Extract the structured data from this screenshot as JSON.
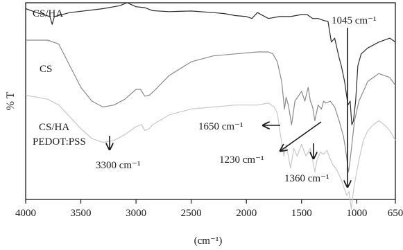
{
  "chart_data": {
    "type": "line",
    "xlabel": "(cm⁻¹)",
    "ylabel": "% T",
    "xlim": [
      4000,
      650
    ],
    "x_reversed": true,
    "x_ticks": [
      "4000",
      "3500",
      "3000",
      "2500",
      "2000",
      "1500",
      "1000",
      "650"
    ],
    "x_tick_values": [
      4000,
      3500,
      3000,
      2500,
      2000,
      1500,
      1000,
      650
    ],
    "ylim": [
      0,
      100
    ],
    "grid": false,
    "series": [
      {
        "name": "CS/HA",
        "color": "#2b2b2b",
        "points": [
          [
            4000,
            97
          ],
          [
            3900,
            95
          ],
          [
            3780,
            93
          ],
          [
            3760,
            89
          ],
          [
            3740,
            93
          ],
          [
            3600,
            95
          ],
          [
            3450,
            96
          ],
          [
            3300,
            97
          ],
          [
            3150,
            98.5
          ],
          [
            3080,
            100
          ],
          [
            3000,
            98
          ],
          [
            2920,
            97.5
          ],
          [
            2850,
            96
          ],
          [
            2700,
            95.5
          ],
          [
            2500,
            95.8
          ],
          [
            2300,
            95
          ],
          [
            2200,
            94.5
          ],
          [
            2100,
            93.5
          ],
          [
            2000,
            93
          ],
          [
            1950,
            92
          ],
          [
            1900,
            95
          ],
          [
            1800,
            92
          ],
          [
            1700,
            93
          ],
          [
            1600,
            93
          ],
          [
            1500,
            94
          ],
          [
            1450,
            94
          ],
          [
            1400,
            92
          ],
          [
            1350,
            92
          ],
          [
            1300,
            91
          ],
          [
            1260,
            90.5
          ],
          [
            1230,
            80
          ],
          [
            1200,
            82
          ],
          [
            1160,
            72
          ],
          [
            1140,
            68
          ],
          [
            1110,
            60
          ],
          [
            1080,
            48
          ],
          [
            1060,
            50
          ],
          [
            1045,
            38
          ],
          [
            1030,
            40
          ],
          [
            1010,
            50
          ],
          [
            990,
            68
          ],
          [
            960,
            74
          ],
          [
            900,
            77
          ],
          [
            800,
            80
          ],
          [
            700,
            82
          ],
          [
            650,
            80
          ]
        ]
      },
      {
        "name": "CS",
        "color": "#8a8a8a",
        "points": [
          [
            4000,
            81
          ],
          [
            3800,
            81
          ],
          [
            3700,
            79
          ],
          [
            3600,
            68
          ],
          [
            3500,
            57
          ],
          [
            3400,
            50
          ],
          [
            3300,
            47
          ],
          [
            3200,
            48
          ],
          [
            3100,
            51
          ],
          [
            3000,
            56
          ],
          [
            2960,
            56
          ],
          [
            2920,
            52.5
          ],
          [
            2880,
            53
          ],
          [
            2840,
            55
          ],
          [
            2700,
            63
          ],
          [
            2500,
            70
          ],
          [
            2300,
            73
          ],
          [
            2100,
            74
          ],
          [
            1900,
            75
          ],
          [
            1800,
            75
          ],
          [
            1760,
            74
          ],
          [
            1720,
            70
          ],
          [
            1680,
            60
          ],
          [
            1655,
            46
          ],
          [
            1640,
            52
          ],
          [
            1620,
            48
          ],
          [
            1590,
            38
          ],
          [
            1560,
            50
          ],
          [
            1500,
            55
          ],
          [
            1470,
            50
          ],
          [
            1440,
            57
          ],
          [
            1420,
            50
          ],
          [
            1400,
            47
          ],
          [
            1380,
            40
          ],
          [
            1350,
            48
          ],
          [
            1320,
            46
          ],
          [
            1300,
            50
          ],
          [
            1280,
            49
          ],
          [
            1240,
            50
          ],
          [
            1200,
            47
          ],
          [
            1160,
            40
          ],
          [
            1120,
            32
          ],
          [
            1100,
            25
          ],
          [
            1075,
            14
          ],
          [
            1060,
            20
          ],
          [
            1040,
            30
          ],
          [
            1020,
            40
          ],
          [
            980,
            50
          ],
          [
            940,
            55
          ],
          [
            900,
            60
          ],
          [
            850,
            62
          ],
          [
            800,
            64
          ],
          [
            700,
            62
          ],
          [
            650,
            58
          ]
        ]
      },
      {
        "name": "CS/HA PEDOT:PSS",
        "color": "#c8c8c8",
        "points": [
          [
            4000,
            53
          ],
          [
            3800,
            51
          ],
          [
            3700,
            48
          ],
          [
            3600,
            42
          ],
          [
            3500,
            36
          ],
          [
            3400,
            31
          ],
          [
            3300,
            29
          ],
          [
            3200,
            30
          ],
          [
            3100,
            33
          ],
          [
            3000,
            37
          ],
          [
            2950,
            38
          ],
          [
            2920,
            35
          ],
          [
            2880,
            36
          ],
          [
            2850,
            38
          ],
          [
            2700,
            43
          ],
          [
            2500,
            46
          ],
          [
            2300,
            47
          ],
          [
            2100,
            48
          ],
          [
            1900,
            48
          ],
          [
            1800,
            49
          ],
          [
            1750,
            47
          ],
          [
            1720,
            44
          ],
          [
            1700,
            36
          ],
          [
            1660,
            22
          ],
          [
            1640,
            28
          ],
          [
            1620,
            22
          ],
          [
            1600,
            16
          ],
          [
            1570,
            26
          ],
          [
            1540,
            22
          ],
          [
            1500,
            28
          ],
          [
            1460,
            22
          ],
          [
            1420,
            26
          ],
          [
            1400,
            20
          ],
          [
            1380,
            14
          ],
          [
            1360,
            20
          ],
          [
            1330,
            24
          ],
          [
            1300,
            23
          ],
          [
            1270,
            25
          ],
          [
            1250,
            22
          ],
          [
            1220,
            18
          ],
          [
            1180,
            15
          ],
          [
            1140,
            10
          ],
          [
            1110,
            5
          ],
          [
            1090,
            2
          ],
          [
            1070,
            4
          ],
          [
            1050,
            -5
          ],
          [
            1040,
            0
          ],
          [
            1020,
            8
          ],
          [
            1000,
            14
          ],
          [
            980,
            20
          ],
          [
            940,
            30
          ],
          [
            900,
            35
          ],
          [
            850,
            38
          ],
          [
            800,
            40
          ],
          [
            750,
            38
          ],
          [
            700,
            35
          ],
          [
            650,
            30
          ]
        ]
      }
    ],
    "annotations": [
      {
        "id": "series-label-cs-ha",
        "text": "CS/HA"
      },
      {
        "id": "series-label-cs",
        "text": "CS"
      },
      {
        "id": "series-label-cs-ha-pedot-line1",
        "text": "CS/HA"
      },
      {
        "id": "series-label-cs-ha-pedot-line2",
        "text": "PEDOT:PSS"
      },
      {
        "id": "peak-label-1045",
        "text": "1045 cm⁻¹"
      },
      {
        "id": "peak-label-1650",
        "text": "1650 cm⁻¹"
      },
      {
        "id": "peak-label-1230",
        "text": "1230 cm⁻¹"
      },
      {
        "id": "peak-label-1360",
        "text": "1360 cm⁻¹"
      },
      {
        "id": "peak-label-3300",
        "text": "3300 cm⁻¹"
      }
    ]
  }
}
